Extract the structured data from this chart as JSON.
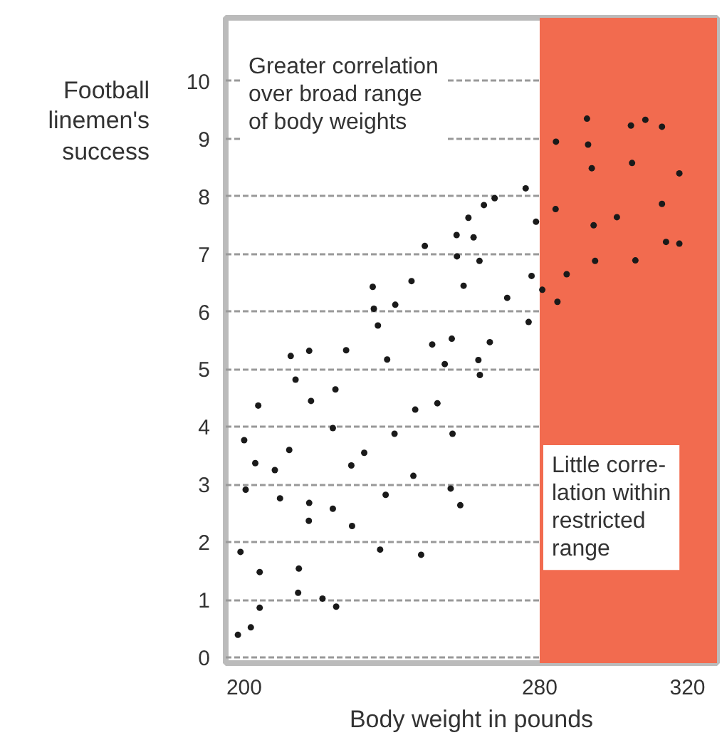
{
  "chart_data": {
    "type": "scatter",
    "xlabel": "Body weight in pounds",
    "ylabel": "Football\nlinemen's\nsuccess",
    "annotations": [
      "Greater correlation\nover broad range\nof body weights",
      "Little corre-\nlation within\nrestricted\nrange"
    ],
    "xlim": [
      195,
      328
    ],
    "ylim": [
      -0.1,
      11.1
    ],
    "xticks": [
      200,
      280,
      320
    ],
    "yticks": [
      0,
      1,
      2,
      3,
      4,
      5,
      6,
      7,
      8,
      9,
      10
    ],
    "grid": "y",
    "marker": "circle",
    "bands": [
      {
        "axis": "x",
        "from": 280,
        "to": 328,
        "color": "#f26b4f"
      }
    ],
    "series": [
      {
        "color": "#1a1a1a",
        "x": [
          276.2,
          267.8,
          264.9,
          260.7,
          279.0,
          257.5,
          262.1,
          248.9,
          257.6,
          263.7,
          277.8,
          234.8,
          245.3,
          259.4,
          271.2,
          235.1,
          240.9,
          236.2,
          277.0,
          212.6,
          217.6,
          227.6,
          250.9,
          256.2,
          266.5,
          238.7,
          254.3,
          263.4,
          263.8,
          213.9,
          224.7,
          203.8,
          218.1,
          246.3,
          252.3,
          200.0,
          224.0,
          240.7,
          256.4,
          203.0,
          208.3,
          212.2,
          229.0,
          232.5,
          245.8,
          200.4,
          209.7,
          217.6,
          217.5,
          224.0,
          229.2,
          238.3,
          255.9,
          258.5,
          199.0,
          204.2,
          214.8,
          236.8,
          247.9,
          214.6,
          221.2,
          224.9,
          204.2,
          201.8,
          198.3,
          292.8,
          304.7,
          308.6,
          313.1,
          284.4,
          293.1,
          294.1,
          305.0,
          317.8,
          284.3,
          313.1,
          300.9,
          294.6,
          314.2,
          317.8,
          295.0,
          305.9,
          287.3,
          280.7,
          284.8
        ],
        "values": [
          8.14,
          7.97,
          7.85,
          7.63,
          7.56,
          7.33,
          7.29,
          7.14,
          6.96,
          6.88,
          6.62,
          6.43,
          6.53,
          6.45,
          6.24,
          6.05,
          6.12,
          5.76,
          5.82,
          5.23,
          5.32,
          5.33,
          5.43,
          5.53,
          5.47,
          5.17,
          5.09,
          5.16,
          4.9,
          4.82,
          4.65,
          4.37,
          4.45,
          4.3,
          4.41,
          3.77,
          3.98,
          3.88,
          3.88,
          3.37,
          3.25,
          3.6,
          3.33,
          3.55,
          3.15,
          2.91,
          2.76,
          2.68,
          2.37,
          2.58,
          2.28,
          2.82,
          2.93,
          2.64,
          1.83,
          1.48,
          1.54,
          1.87,
          1.78,
          1.12,
          1.02,
          0.88,
          0.86,
          0.52,
          0.39,
          9.35,
          9.23,
          9.33,
          9.21,
          8.95,
          8.9,
          8.49,
          8.58,
          8.4,
          7.78,
          7.87,
          7.64,
          7.5,
          7.21,
          7.18,
          6.88,
          6.89,
          6.65,
          6.38,
          6.17
        ]
      }
    ]
  }
}
